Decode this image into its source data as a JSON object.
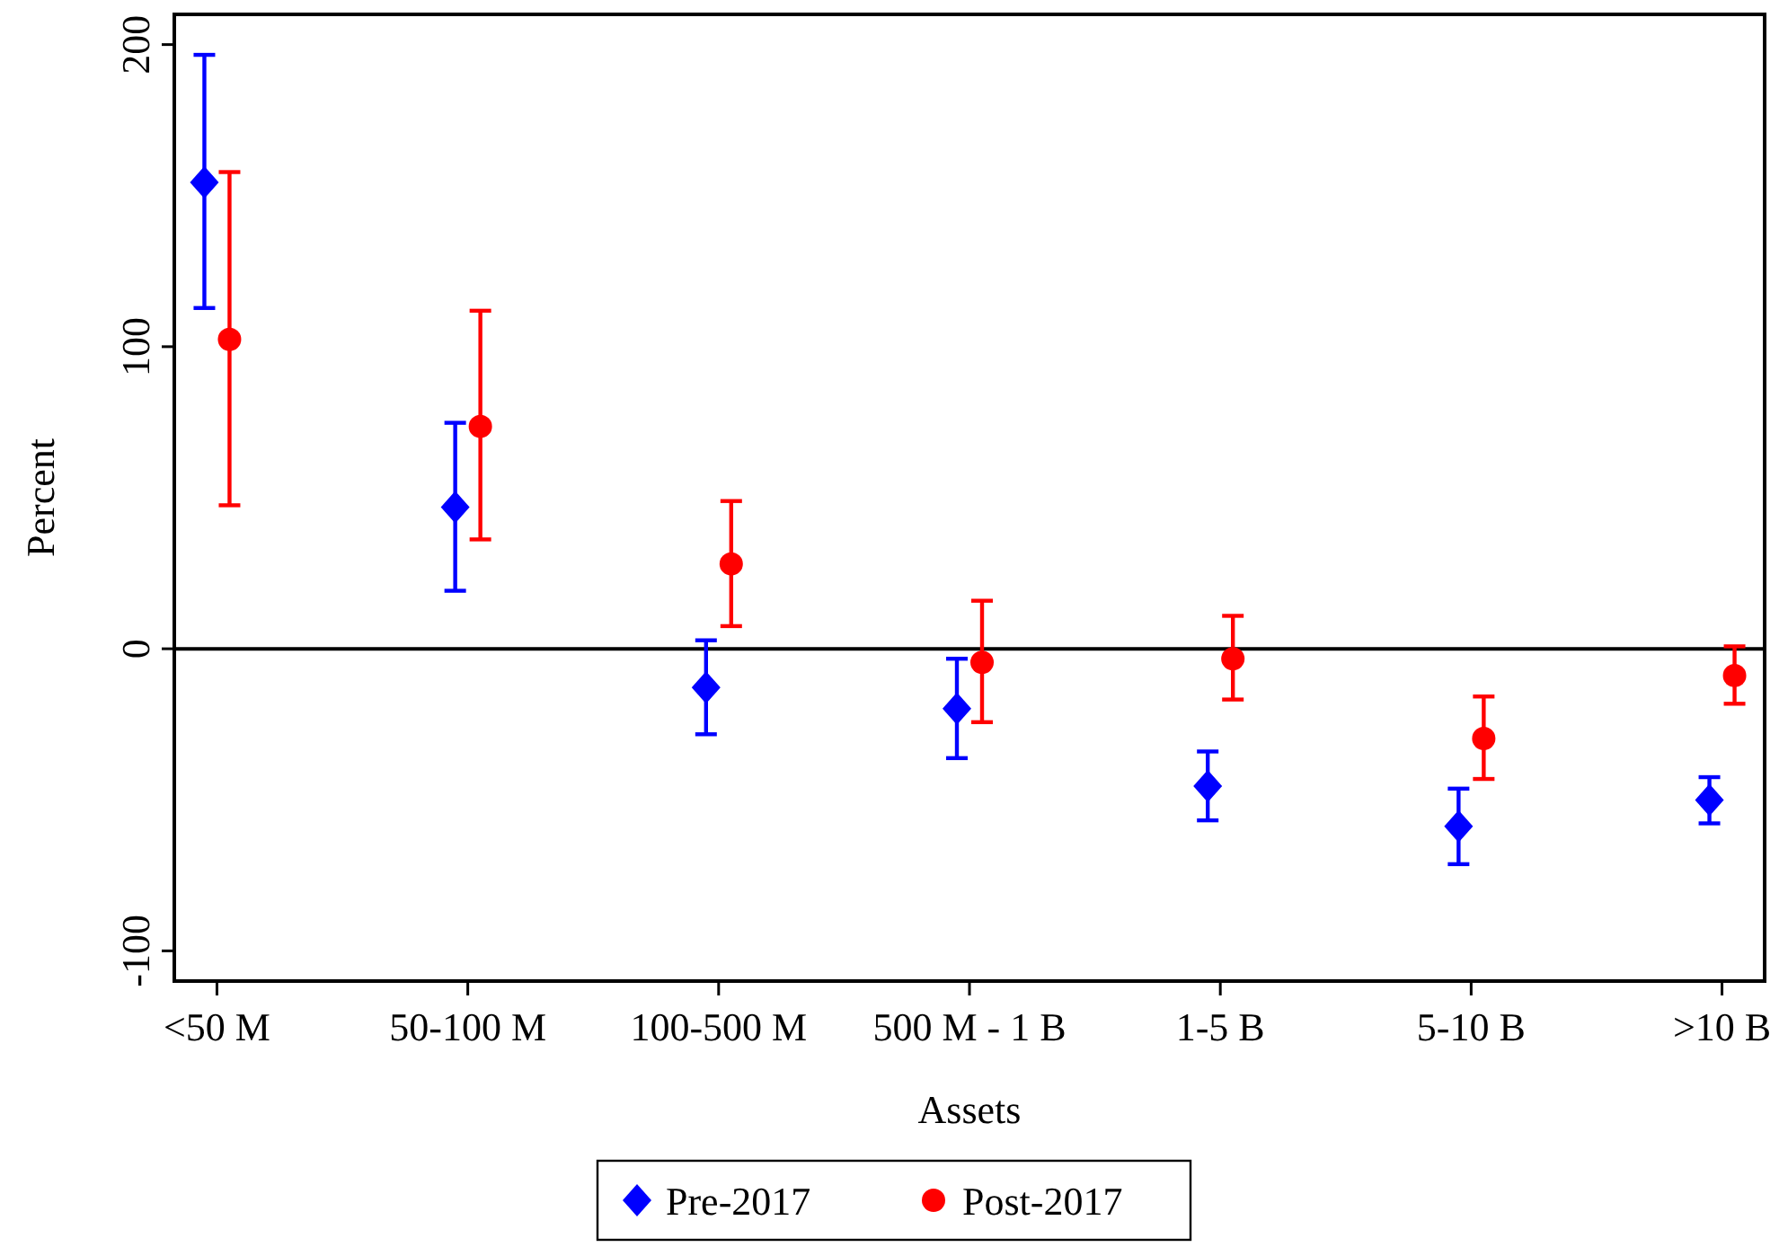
{
  "chart_data": {
    "type": "scatter",
    "xlabel": "Assets",
    "ylabel": "Percent",
    "categories": [
      "<50 M",
      "50-100 M",
      "100-500 M",
      "500 M - 1 B",
      "1-5 B",
      "5-10 B",
      ">10 B"
    ],
    "series": [
      {
        "name": "Pre-2017",
        "color": "#0000ff",
        "marker": "diamond",
        "values": [
          154.4,
          46.9,
          -12.8,
          -19.8,
          -45.5,
          -58.8,
          -50.1
        ],
        "errors": [
          [
            112.8,
            196.6
          ],
          [
            19.2,
            74.8
          ],
          [
            -28.3,
            2.8
          ],
          [
            -36.2,
            -3.3
          ],
          [
            -56.8,
            -34
          ],
          [
            -71.3,
            -46.3
          ],
          [
            -57.8,
            -42.5
          ]
        ]
      },
      {
        "name": "Post-2017",
        "color": "#ff0000",
        "marker": "circle",
        "values": [
          102.4,
          73.6,
          28.1,
          -4.5,
          -3.3,
          -29.7,
          -8.9
        ],
        "errors": [
          [
            47.5,
            157.8
          ],
          [
            36.2,
            111.9
          ],
          [
            7.5,
            48.9
          ],
          [
            -24.3,
            15.9
          ],
          [
            -16.8,
            10.9
          ],
          [
            -43.1,
            -15.8
          ],
          [
            -18.2,
            0.8
          ]
        ]
      }
    ],
    "ylim": [
      -110,
      210
    ],
    "yticks": [
      -100,
      0,
      100,
      200
    ],
    "ref_lines": [
      {
        "axis": "y",
        "value": 0,
        "color": "#000000"
      }
    ],
    "grid": false,
    "legend": "bottom"
  }
}
